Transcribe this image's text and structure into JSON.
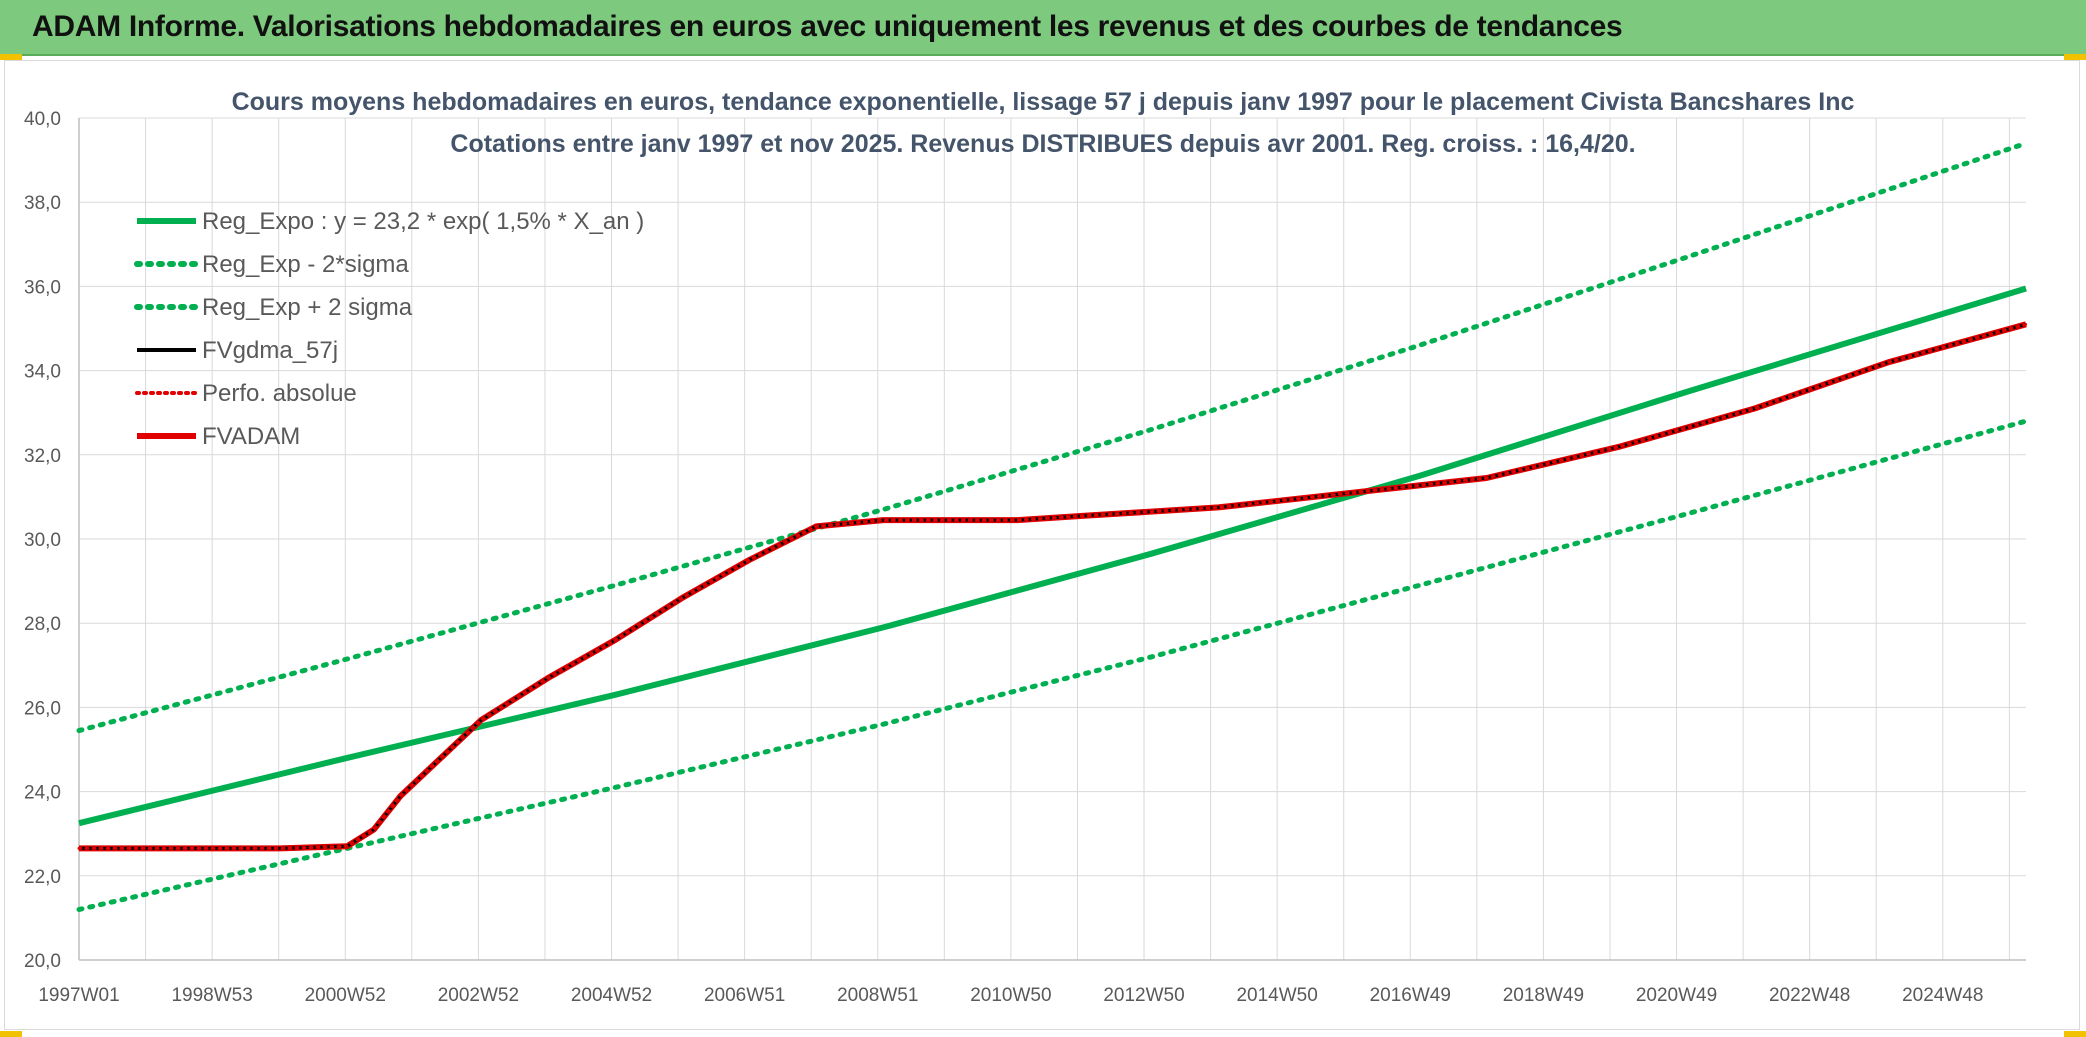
{
  "banner": {
    "title": "ADAM Informe. Valorisations hebdomadaires en euros avec uniquement les revenus et des courbes de tendances"
  },
  "colors": {
    "banner_bg": "#7dc97d",
    "green": "#00b050",
    "red": "#e00000",
    "black": "#000000",
    "grid": "#d9d9d9",
    "title_text": "#44546a",
    "tick_text": "#595959"
  },
  "chart_data": {
    "type": "line",
    "title_line1": "Cours moyens hebdomadaires en euros, tendance exponentielle, lissage 57 j depuis janv 1997 pour le placement Civista Bancshares Inc",
    "title_line2": "Cotations entre janv 1997 et nov 2025. Revenus DISTRIBUES depuis avr 2001. Reg. croiss. : 16,4/20.",
    "xlabel": "",
    "ylabel": "",
    "x_tick_labels": [
      "1997W01",
      "1998W53",
      "2000W52",
      "2002W52",
      "2004W52",
      "2006W51",
      "2008W51",
      "2010W50",
      "2012W50",
      "2014W50",
      "2016W49",
      "2018W49",
      "2020W49",
      "2022W48",
      "2024W48"
    ],
    "x_range": [
      1997.0,
      2026.05
    ],
    "ylim": [
      20,
      40
    ],
    "y_ticks": [
      "20,0",
      "22,0",
      "24,0",
      "26,0",
      "28,0",
      "30,0",
      "32,0",
      "34,0",
      "36,0",
      "38,0",
      "40,0"
    ],
    "grid": true,
    "legend_position": "top-left",
    "series": [
      {
        "name": "Reg_Expo : y = 23,2 * exp( 1,5% *  X_an )",
        "style": "solid-green",
        "x": [
          1997.0,
          2001.0,
          2005.0,
          2009.0,
          2013.0,
          2017.0,
          2021.0,
          2026.05
        ],
        "values": [
          23.25,
          24.8,
          26.3,
          27.9,
          29.65,
          31.5,
          33.5,
          35.95
        ]
      },
      {
        "name": "Reg_Exp - 2*sigma",
        "style": "dotted-green",
        "x": [
          1997.0,
          2001.0,
          2005.0,
          2009.0,
          2013.0,
          2017.0,
          2021.0,
          2026.05
        ],
        "values": [
          21.2,
          22.65,
          24.1,
          25.6,
          27.2,
          28.9,
          30.6,
          32.8
        ]
      },
      {
        "name": "Reg_Exp + 2 sigma",
        "style": "dotted-green",
        "x": [
          1997.0,
          2001.0,
          2005.0,
          2009.0,
          2013.0,
          2017.0,
          2021.0,
          2026.05
        ],
        "values": [
          25.45,
          27.15,
          28.9,
          30.7,
          32.6,
          34.6,
          36.7,
          39.4
        ]
      },
      {
        "name": "FVgdma_57j",
        "style": "solid-black",
        "x": [
          1997.0,
          2000.0,
          2001.0,
          2001.4,
          2001.8,
          2002.0,
          2002.4,
          2003.0,
          2004.0,
          2005.0,
          2006.0,
          2007.0,
          2008.0,
          2009.0,
          2010.0,
          2011.0,
          2012.0,
          2014.0,
          2016.0,
          2018.0,
          2020.0,
          2022.0,
          2024.0,
          2026.05
        ],
        "values": [
          22.65,
          22.65,
          22.7,
          23.1,
          23.9,
          24.2,
          24.8,
          25.7,
          26.7,
          27.6,
          28.6,
          29.5,
          30.3,
          30.45,
          30.45,
          30.45,
          30.55,
          30.75,
          31.1,
          31.45,
          32.2,
          33.1,
          34.2,
          35.1
        ]
      },
      {
        "name": "Perfo. absolue",
        "style": "dotted-red",
        "x": [
          1997.0,
          2000.0,
          2001.0,
          2001.4,
          2001.8,
          2002.0,
          2002.4,
          2003.0,
          2004.0,
          2005.0,
          2006.0,
          2007.0,
          2008.0,
          2009.0,
          2010.0,
          2011.0,
          2012.0,
          2014.0,
          2016.0,
          2018.0,
          2020.0,
          2022.0,
          2024.0,
          2026.05
        ],
        "values": [
          22.65,
          22.65,
          22.7,
          23.1,
          23.9,
          24.2,
          24.8,
          25.7,
          26.7,
          27.6,
          28.6,
          29.5,
          30.3,
          30.45,
          30.45,
          30.45,
          30.55,
          30.75,
          31.1,
          31.45,
          32.2,
          33.1,
          34.2,
          35.1
        ]
      },
      {
        "name": "FVADAM",
        "style": "solid-red",
        "x": [
          1997.0,
          2000.0,
          2001.0,
          2001.4,
          2001.8,
          2002.0,
          2002.4,
          2003.0,
          2004.0,
          2005.0,
          2006.0,
          2007.0,
          2008.0,
          2009.0,
          2010.0,
          2011.0,
          2012.0,
          2014.0,
          2016.0,
          2018.0,
          2020.0,
          2022.0,
          2024.0,
          2026.05
        ],
        "values": [
          22.65,
          22.65,
          22.7,
          23.1,
          23.9,
          24.2,
          24.8,
          25.7,
          26.7,
          27.6,
          28.6,
          29.5,
          30.3,
          30.45,
          30.45,
          30.45,
          30.55,
          30.75,
          31.1,
          31.45,
          32.2,
          33.1,
          34.2,
          35.1
        ]
      }
    ]
  }
}
